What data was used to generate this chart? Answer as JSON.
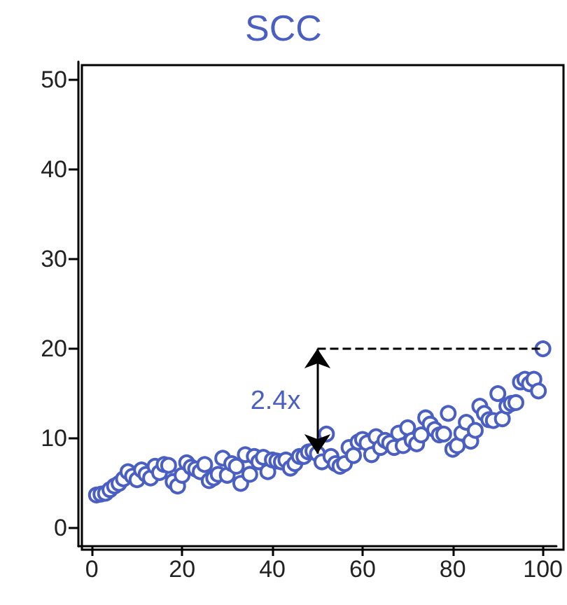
{
  "chart_data": {
    "type": "scatter",
    "title": "SCC",
    "marker": "circle",
    "xlim": [
      -3,
      103
    ],
    "xticks": [
      0,
      20,
      40,
      60,
      80,
      100
    ],
    "ylim": [
      -2,
      52
    ],
    "yticks": [
      0,
      10,
      20,
      30,
      40,
      50
    ],
    "annotations": [
      "2.4x"
    ],
    "series": [
      {
        "color": "#4a5fc1",
        "x": [
          1,
          2,
          3,
          4,
          5,
          6,
          7,
          8,
          9,
          10,
          11,
          12,
          13,
          14,
          15,
          16,
          17,
          18,
          19,
          20,
          21,
          22,
          23,
          24,
          25,
          26,
          27,
          28,
          29,
          30,
          31,
          32,
          33,
          34,
          35,
          36,
          37,
          38,
          39,
          40,
          41,
          42,
          43,
          44,
          45,
          46,
          47,
          48,
          49,
          50,
          51,
          52,
          53,
          54,
          55,
          56,
          57,
          58,
          59,
          60,
          61,
          62,
          63,
          64,
          65,
          66,
          67,
          68,
          69,
          70,
          71,
          72,
          73,
          74,
          75,
          76,
          77,
          78,
          79,
          80,
          81,
          82,
          83,
          84,
          85,
          86,
          87,
          88,
          89,
          90,
          91,
          92,
          93,
          94,
          95,
          96,
          97,
          98,
          99,
          100
        ],
        "values": [
          3.7,
          3.8,
          3.9,
          4.3,
          4.7,
          5.0,
          5.5,
          6.3,
          5.8,
          5.4,
          6.5,
          6.0,
          5.6,
          6.9,
          6.2,
          7.1,
          7.0,
          5.2,
          4.7,
          5.9,
          7.3,
          6.8,
          6.6,
          6.3,
          7.1,
          5.3,
          5.6,
          6.0,
          7.8,
          5.9,
          7.2,
          6.9,
          5.0,
          8.2,
          6.0,
          8.0,
          7.4,
          7.9,
          6.3,
          7.6,
          7.5,
          7.4,
          7.6,
          6.7,
          7.2,
          8.0,
          8.0,
          8.5,
          8.6,
          8.3,
          7.4,
          10.5,
          8.0,
          7.2,
          6.9,
          7.2,
          9.0,
          8.1,
          9.6,
          9.9,
          9.5,
          8.2,
          10.2,
          9.0,
          9.8,
          9.5,
          9.0,
          10.6,
          9.2,
          11.2,
          9.8,
          9.4,
          10.4,
          12.3,
          11.6,
          11.0,
          10.4,
          10.5,
          12.8,
          8.8,
          9.2,
          10.6,
          11.8,
          9.7,
          10.9,
          13.6,
          12.8,
          12.1,
          12.0,
          15.0,
          12.2,
          13.6,
          13.9,
          14.0,
          16.3,
          16.6,
          16.1,
          16.6,
          15.3,
          20.0
        ]
      }
    ]
  }
}
